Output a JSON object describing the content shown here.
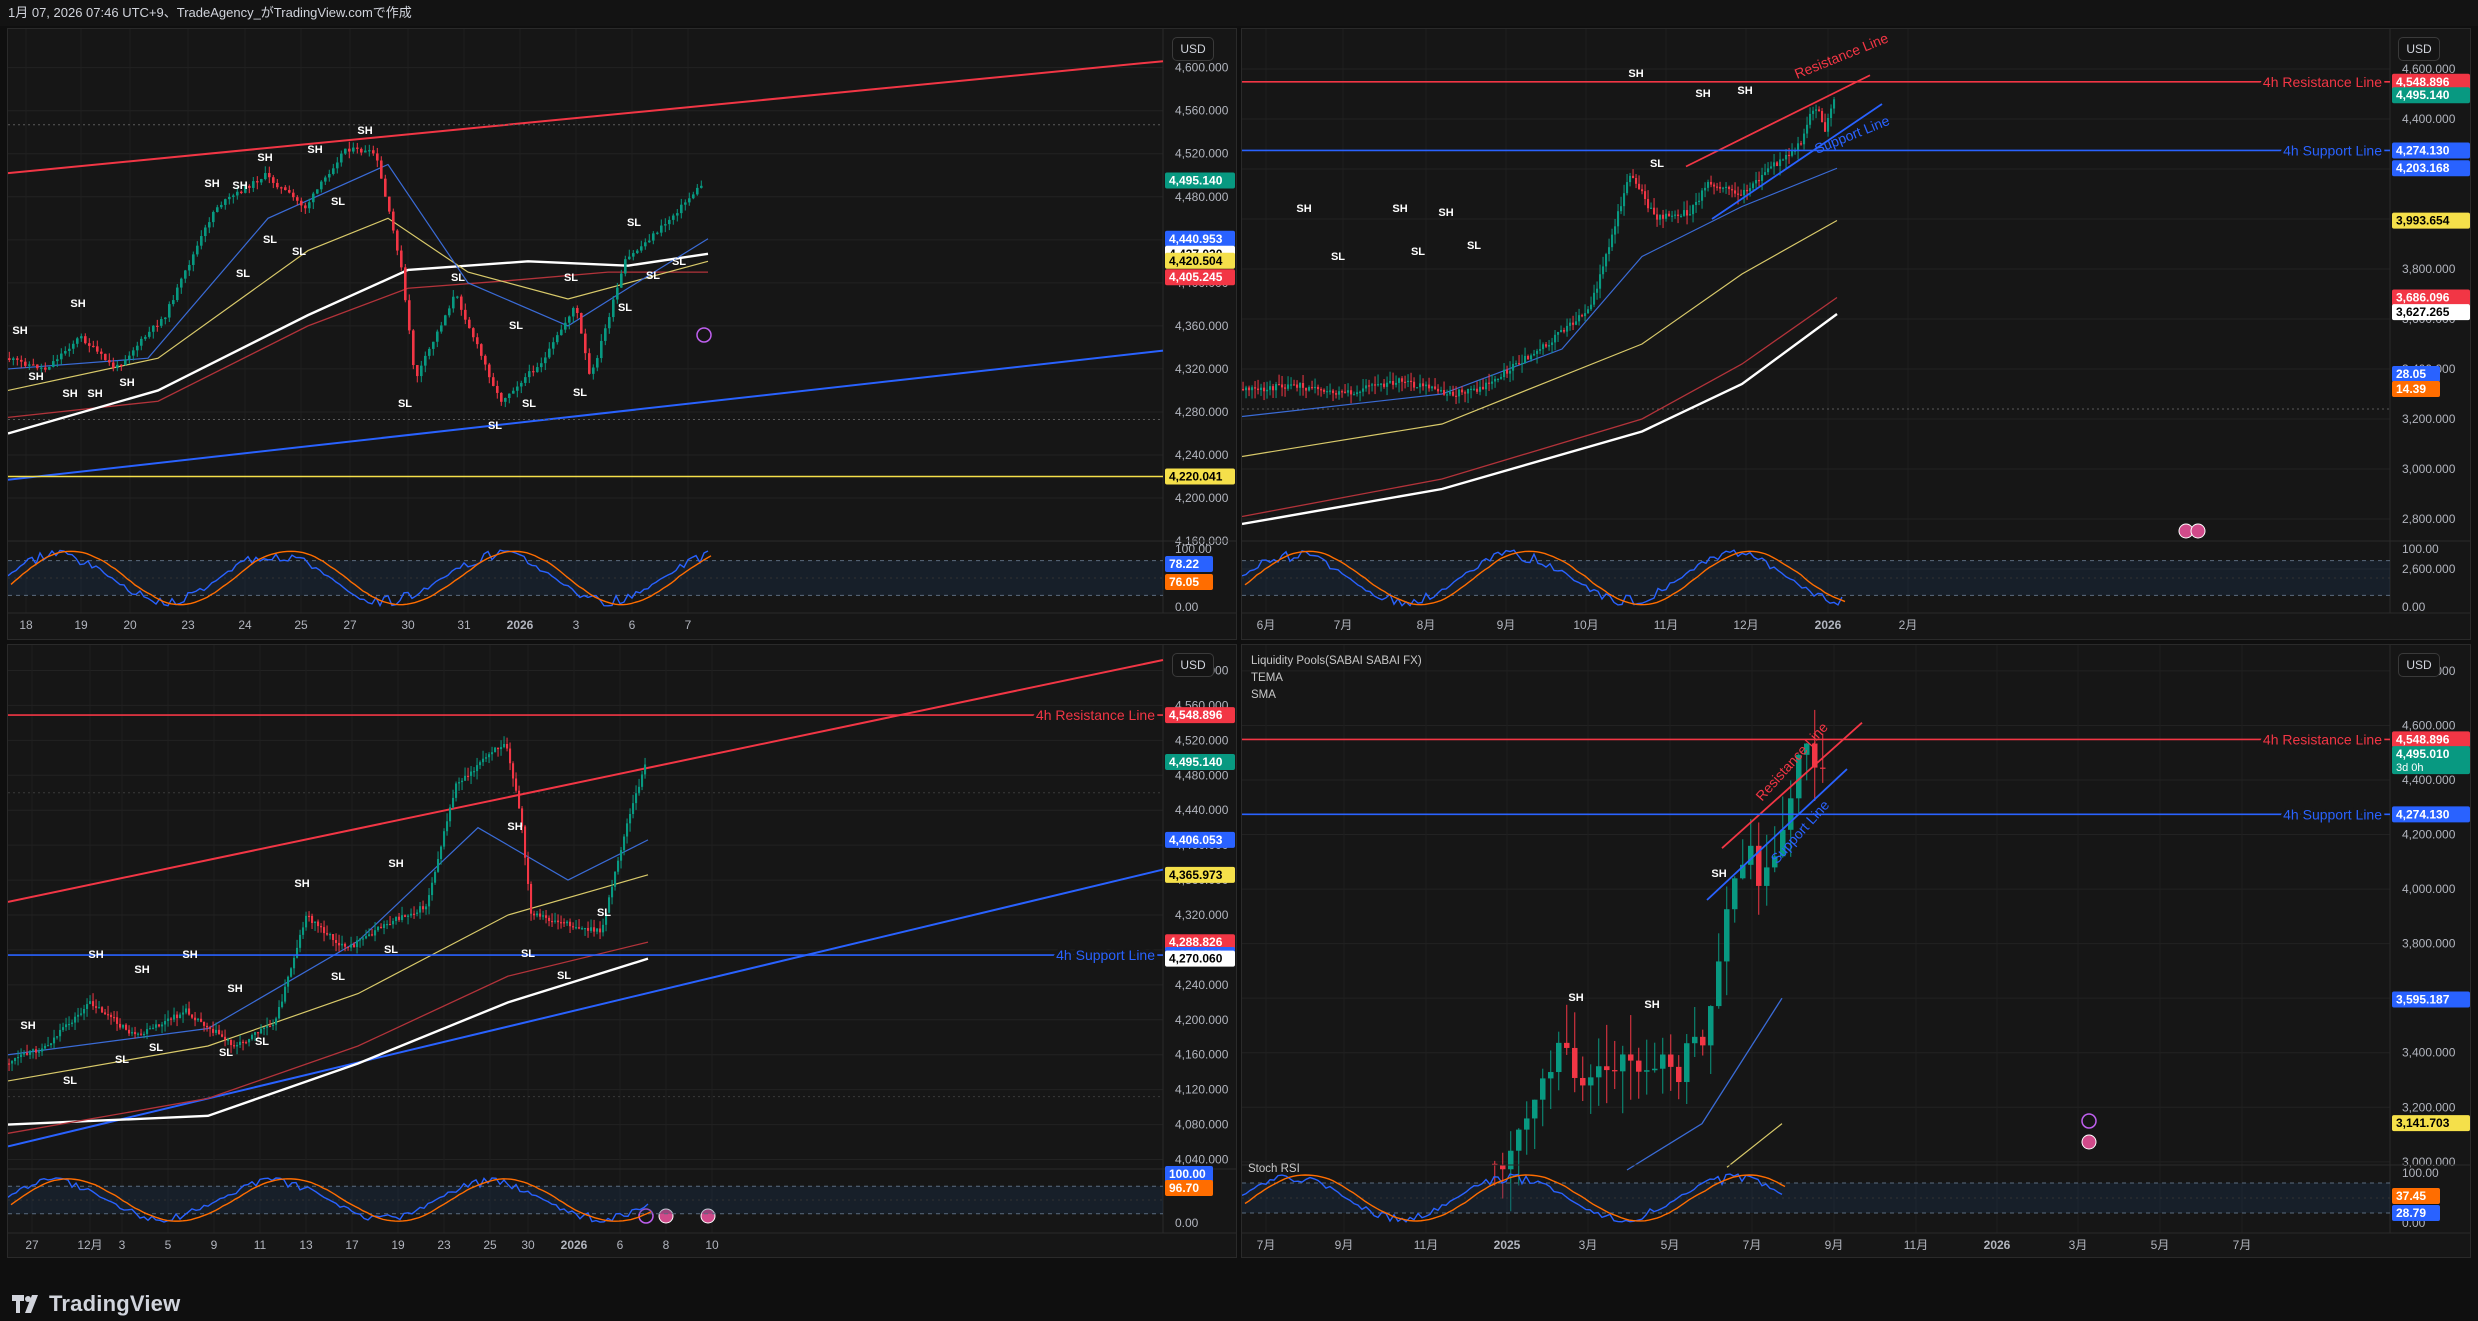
{
  "header": {
    "text": "1月 07, 2026 07:46 UTC+9、TradeAgency_がTradingView.comで作成"
  },
  "brand": {
    "name": "TradingView",
    "logo_icon": "tradingview-logo-icon"
  },
  "colors": {
    "resistance": "#f23645",
    "support": "#2962ff",
    "up": "#089981",
    "down": "#f23645",
    "ema_blue": "#3a6bd6",
    "ema_yellow": "#d8c96a",
    "ema_red": "#b2333a",
    "ema_white": "#ffffff",
    "stoch_k": "#2962ff",
    "stoch_d": "#ff6d00"
  },
  "panels": [
    {
      "id": "tl",
      "currency": "USD",
      "price_ticks": [
        "4,600.000",
        "4,560.000",
        "4,520.000",
        "4,480.000",
        "4,440.000",
        "4,400.000",
        "4,360.000",
        "4,320.000",
        "4,280.000",
        "4,240.000",
        "4,200.000",
        "4,160.000"
      ],
      "price_range": [
        4148,
        4622
      ],
      "price_badges": [
        {
          "text": "4,495.140",
          "value": 4495.14,
          "bg": "#089981",
          "fg": "#ffffff"
        },
        {
          "text": "4,440.953",
          "value": 4440.953,
          "bg": "#2962ff",
          "fg": "#ffffff"
        },
        {
          "text": "4,427.020",
          "value": 4427.02,
          "bg": "#ffffff",
          "fg": "#000000"
        },
        {
          "text": "4,420.504",
          "value": 4420.504,
          "bg": "#f5e04a",
          "fg": "#000000"
        },
        {
          "text": "4,405.245",
          "value": 4405.245,
          "bg": "#f23645",
          "fg": "#ffffff"
        },
        {
          "text": "4,220.041",
          "value": 4220.041,
          "bg": "#f5e04a",
          "fg": "#000000"
        }
      ],
      "horizontal_lines": [
        {
          "value": 4220.041,
          "color": "#f5e04a",
          "label": ""
        }
      ],
      "osc_ticks": [
        "100.00",
        "0.00"
      ],
      "osc_badges": [
        {
          "text": "78.22",
          "bg": "#2962ff",
          "fg": "#ffffff"
        },
        {
          "text": "76.05",
          "bg": "#ff6d00",
          "fg": "#ffffff"
        }
      ],
      "time_ticks": [
        "18",
        "19",
        "20",
        "23",
        "24",
        "25",
        "27",
        "30",
        "31",
        "2026",
        "3",
        "6",
        "7"
      ],
      "swing_labels": [
        "SH",
        "SH",
        "SH",
        "SH",
        "SH",
        "SH",
        "SH",
        "SH",
        "SH",
        "SH",
        "SH",
        "SL",
        "SL",
        "SL",
        "SL",
        "SL",
        "SL",
        "SL",
        "SL",
        "SL",
        "SL",
        "SL",
        "SL",
        "SL",
        "SL",
        "SL"
      ]
    },
    {
      "id": "tr",
      "currency": "USD",
      "price_ticks": [
        "4,600.000",
        "4,400.000",
        "4,200.000",
        "4,000.000",
        "3,800.000",
        "3,600.000",
        "3,400.000",
        "3,200.000",
        "3,000.000",
        "2,800.000",
        "2,600.000"
      ],
      "price_range": [
        2600,
        4640
      ],
      "price_badges": [
        {
          "text": "4,548.896",
          "value": 4548.896,
          "bg": "#f23645",
          "fg": "#ffffff"
        },
        {
          "text": "4,495.140",
          "value": 4495.14,
          "bg": "#089981",
          "fg": "#ffffff"
        },
        {
          "text": "4,274.130",
          "value": 4274.13,
          "bg": "#2962ff",
          "fg": "#ffffff"
        },
        {
          "text": "4,203.168",
          "value": 4203.168,
          "bg": "#2962ff",
          "fg": "#ffffff"
        },
        {
          "text": "3,993.654",
          "value": 3993.654,
          "bg": "#f5e04a",
          "fg": "#000000"
        },
        {
          "text": "3,686.096",
          "value": 3686.096,
          "bg": "#f23645",
          "fg": "#ffffff"
        },
        {
          "text": "3,627.265",
          "value": 3627.265,
          "bg": "#ffffff",
          "fg": "#000000"
        }
      ],
      "horizontal_lines": [
        {
          "value": 4548.896,
          "color": "#f23645",
          "label": "4h Resistance Line"
        },
        {
          "value": 4274.13,
          "color": "#2962ff",
          "label": "4h Support Line"
        }
      ],
      "channel_labels": [
        "Resistance Line",
        "Support Line"
      ],
      "osc_ticks": [
        "100.00",
        "0.00"
      ],
      "osc_badges": [
        {
          "text": "28.05",
          "bg": "#2962ff",
          "fg": "#ffffff"
        },
        {
          "text": "14.39",
          "bg": "#ff6d00",
          "fg": "#ffffff"
        }
      ],
      "time_ticks": [
        "6月",
        "7月",
        "8月",
        "9月",
        "10月",
        "11月",
        "12月",
        "2026",
        "2月"
      ],
      "swing_labels": [
        "SH",
        "SH",
        "SH",
        "SH",
        "SH",
        "SH",
        "SL",
        "SL",
        "SL",
        "SL",
        "SL"
      ]
    },
    {
      "id": "bl",
      "currency": "USD",
      "price_ticks": [
        "4,600.000",
        "4,560.000",
        "4,520.000",
        "4,480.000",
        "4,440.000",
        "4,400.000",
        "4,360.000",
        "4,320.000",
        "4,280.000",
        "4,240.000",
        "4,200.000",
        "4,160.000",
        "4,120.000",
        "4,080.000",
        "4,040.000"
      ],
      "price_range": [
        4028,
        4612
      ],
      "price_badges": [
        {
          "text": "4,548.896",
          "value": 4548.896,
          "bg": "#f23645",
          "fg": "#ffffff"
        },
        {
          "text": "4,495.140",
          "value": 4495.14,
          "bg": "#089981",
          "fg": "#ffffff"
        },
        {
          "text": "4,406.053",
          "value": 4406.053,
          "bg": "#2962ff",
          "fg": "#ffffff"
        },
        {
          "text": "4,365.973",
          "value": 4365.973,
          "bg": "#f5e04a",
          "fg": "#000000"
        },
        {
          "text": "4,288.826",
          "value": 4288.826,
          "bg": "#f23645",
          "fg": "#ffffff"
        },
        {
          "text": "4,274.130",
          "value": 4274.13,
          "bg": "#2962ff",
          "fg": "#ffffff"
        },
        {
          "text": "4,270.060",
          "value": 4270.06,
          "bg": "#ffffff",
          "fg": "#000000"
        }
      ],
      "horizontal_lines": [
        {
          "value": 4548.896,
          "color": "#f23645",
          "label": "4h Resistance Line"
        },
        {
          "value": 4274.13,
          "color": "#2962ff",
          "label": "4h Support Line"
        }
      ],
      "osc_ticks": [
        "100.00",
        "0.00"
      ],
      "osc_badges": [
        {
          "text": "100.00",
          "bg": "#2962ff",
          "fg": "#ffffff"
        },
        {
          "text": "96.70",
          "bg": "#ff6d00",
          "fg": "#ffffff"
        }
      ],
      "time_ticks": [
        "27",
        "12月",
        "3",
        "5",
        "9",
        "11",
        "13",
        "17",
        "19",
        "23",
        "25",
        "30",
        "2026",
        "6",
        "8",
        "10"
      ],
      "swing_labels": [
        "SH",
        "SH",
        "SH",
        "SH",
        "SH",
        "SH",
        "SH",
        "SH",
        "SL",
        "SL",
        "SL",
        "SL",
        "SL",
        "SL",
        "SL",
        "SL",
        "SL",
        "SL"
      ]
    },
    {
      "id": "br",
      "currency": "USD",
      "legend": [
        "Liquidity Pools(SABAI SABAI FX)",
        "TEMA",
        "SMA"
      ],
      "price_ticks": [
        "4,800.000",
        "4,600.000",
        "4,400.000",
        "4,200.000",
        "4,000.000",
        "3,800.000",
        "3,600.000",
        "3,400.000",
        "3,200.000",
        "3,000.000"
      ],
      "price_range": [
        2970,
        4840
      ],
      "price_badges": [
        {
          "text": "4,548.896",
          "value": 4548.896,
          "bg": "#f23645",
          "fg": "#ffffff"
        },
        {
          "text": "4,495.010",
          "value": 4495.01,
          "bg": "#089981",
          "fg": "#ffffff",
          "sub": "3d 0h"
        },
        {
          "text": "4,274.130",
          "value": 4274.13,
          "bg": "#2962ff",
          "fg": "#ffffff"
        },
        {
          "text": "3,595.187",
          "value": 3595.187,
          "bg": "#2962ff",
          "fg": "#ffffff"
        },
        {
          "text": "3,141.703",
          "value": 3141.703,
          "bg": "#f5e04a",
          "fg": "#000000"
        }
      ],
      "horizontal_lines": [
        {
          "value": 4548.896,
          "color": "#f23645",
          "label": "4h Resistance Line"
        },
        {
          "value": 4274.13,
          "color": "#2962ff",
          "label": "4h Support Line"
        }
      ],
      "channel_labels": [
        "Resistance Line",
        "Support Line"
      ],
      "osc_title": "Stoch RSI",
      "osc_ticks": [
        "100.00",
        "0.00"
      ],
      "osc_badges": [
        {
          "text": "37.45",
          "bg": "#ff6d00",
          "fg": "#ffffff"
        },
        {
          "text": "28.79",
          "bg": "#2962ff",
          "fg": "#ffffff"
        }
      ],
      "time_ticks": [
        "7月",
        "9月",
        "11月",
        "2025",
        "3月",
        "5月",
        "7月",
        "9月",
        "11月",
        "2026",
        "3月",
        "5月",
        "7月"
      ],
      "swing_labels": [
        "SH",
        "SH",
        "SH"
      ]
    }
  ]
}
